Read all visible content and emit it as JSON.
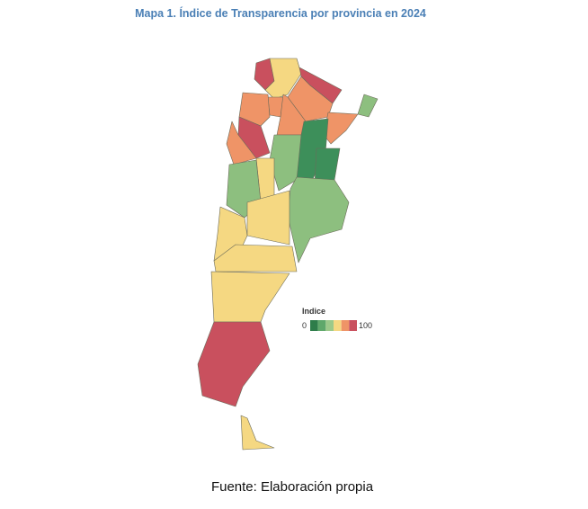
{
  "title": "Mapa 1. Índice de Transparencia por provincia en 2024",
  "legend": {
    "title": "Indice",
    "min": 0,
    "max": 100,
    "colors": [
      "#2e7d4a",
      "#5fa86b",
      "#9cc98a",
      "#f5d882",
      "#ef9467",
      "#c9505e"
    ]
  },
  "source": "Fuente: Elaboración propia"
}
